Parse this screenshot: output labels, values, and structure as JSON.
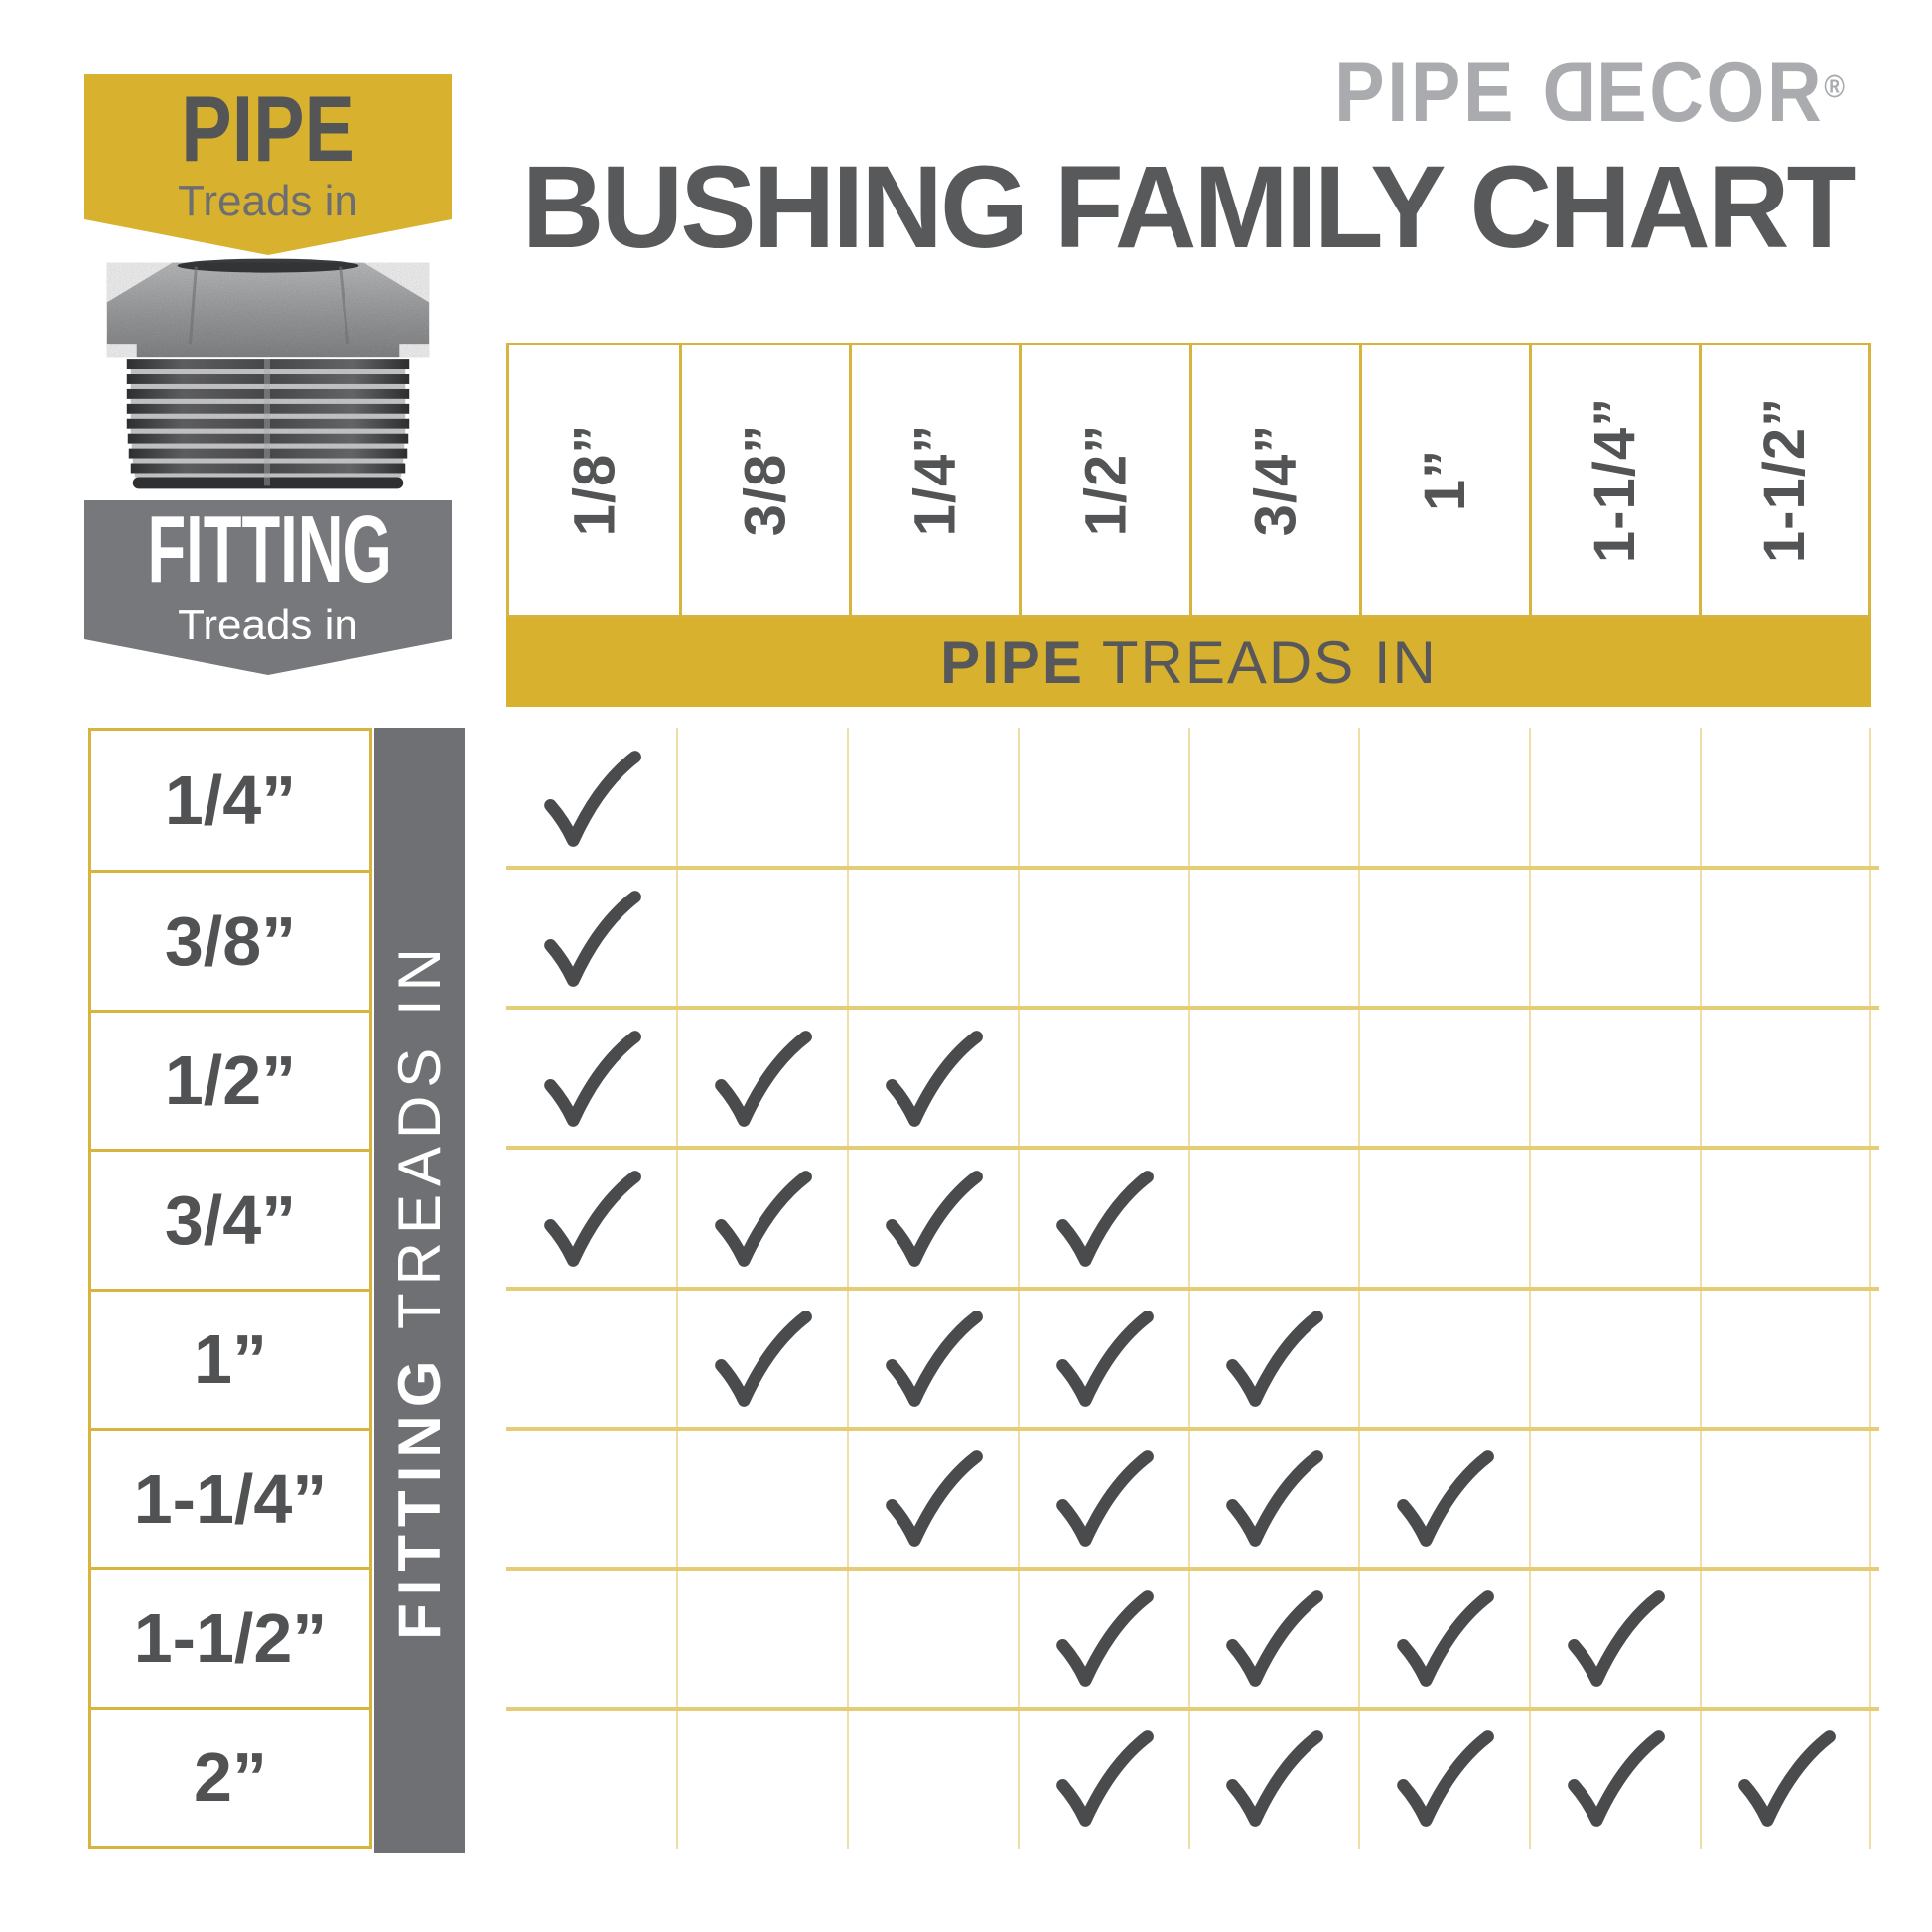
{
  "brand": {
    "logo_word1": "PIPE ",
    "logo_d": "D",
    "logo_rest": "ECOR",
    "logo_reg": "®"
  },
  "title": "BUSHING FAMILY CHART",
  "legend": {
    "pipe_badge": {
      "title": "PIPE",
      "subtitle": "Treads in"
    },
    "fitting_badge": {
      "title": "FITTING",
      "subtitle": "Treads in"
    },
    "image": "galvanized-pipe-bushing-photo"
  },
  "axes": {
    "pipe_axis_bold": "PIPE",
    "pipe_axis_rest": "TREADS IN",
    "fitting_axis_bold": "FITTING",
    "fitting_axis_rest": " TREADS IN"
  },
  "colors": {
    "gold": "#D8B22F",
    "gold_border": "#D9B43C",
    "grid_line_light": "#EEDFA8",
    "grid_line_medium": "#E5CD77",
    "gray_banner": "#77787B",
    "gray_bar": "#6F7073",
    "check": "#4A4B4D",
    "title_gray": "#58595B",
    "logo_gray": "#A9ABAE"
  },
  "chart_data": {
    "type": "table",
    "title": "BUSHING FAMILY CHART",
    "x_axis_label": "PIPE TREADS IN",
    "y_axis_label": "FITTING TREADS IN",
    "columns": [
      "1/8”",
      "3/8”",
      "1/4”",
      "1/2”",
      "3/4”",
      "1”",
      "1-1/4”",
      "1-1/2”"
    ],
    "rows": [
      "1/4”",
      "3/8”",
      "1/2”",
      "3/4”",
      "1”",
      "1-1/4”",
      "1-1/2”",
      "2”"
    ],
    "matrix": [
      [
        1,
        0,
        0,
        0,
        0,
        0,
        0,
        0
      ],
      [
        1,
        0,
        0,
        0,
        0,
        0,
        0,
        0
      ],
      [
        1,
        1,
        1,
        0,
        0,
        0,
        0,
        0
      ],
      [
        1,
        1,
        1,
        1,
        0,
        0,
        0,
        0
      ],
      [
        0,
        1,
        1,
        1,
        1,
        0,
        0,
        0
      ],
      [
        0,
        0,
        1,
        1,
        1,
        1,
        0,
        0
      ],
      [
        0,
        0,
        0,
        1,
        1,
        1,
        1,
        0
      ],
      [
        0,
        0,
        0,
        1,
        1,
        1,
        1,
        1
      ]
    ]
  }
}
